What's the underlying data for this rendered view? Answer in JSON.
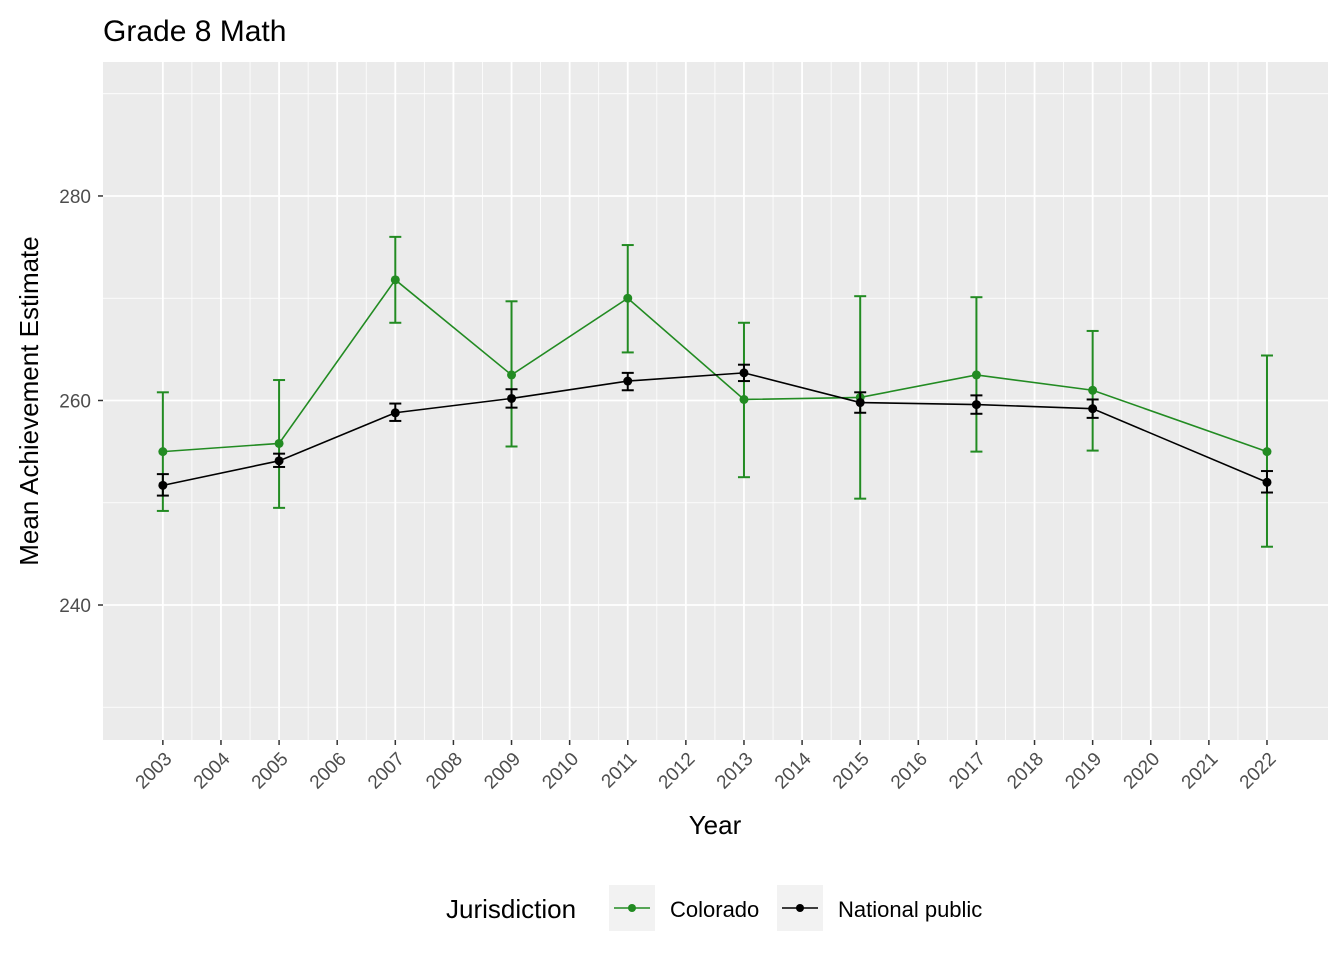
{
  "chart_data": {
    "type": "line",
    "title": "Grade 8 Math",
    "xlabel": "Year",
    "ylabel": "Mean Achievement Estimate",
    "xlim": [
      2001.97,
      2023.05
    ],
    "ylim": [
      226.8,
      293.1
    ],
    "x_ticks": [
      2003,
      2004,
      2005,
      2006,
      2007,
      2008,
      2009,
      2010,
      2011,
      2012,
      2013,
      2014,
      2015,
      2016,
      2017,
      2018,
      2019,
      2020,
      2021,
      2022
    ],
    "y_ticks": [
      240,
      260,
      280
    ],
    "grid": true,
    "legend_title": "Jurisdiction",
    "legend_position": "bottom",
    "x": [
      2003,
      2005,
      2007,
      2009,
      2011,
      2013,
      2015,
      2017,
      2019,
      2022
    ],
    "series": [
      {
        "name": "Colorado",
        "color": "#228B22",
        "values": [
          255.0,
          255.8,
          271.8,
          262.5,
          270.0,
          260.1,
          260.3,
          262.5,
          261.0,
          255.0
        ],
        "lower": [
          249.2,
          249.5,
          267.6,
          255.5,
          264.7,
          252.5,
          250.4,
          255.0,
          255.1,
          245.7
        ],
        "upper": [
          260.8,
          262.0,
          276.0,
          269.7,
          275.2,
          267.6,
          270.2,
          270.1,
          266.8,
          264.4
        ]
      },
      {
        "name": "National public",
        "color": "#000000",
        "values": [
          251.7,
          254.1,
          258.8,
          260.2,
          261.9,
          262.7,
          259.8,
          259.6,
          259.2,
          252.0
        ],
        "lower": [
          250.7,
          253.5,
          258.0,
          259.3,
          261.0,
          261.9,
          258.8,
          258.7,
          258.3,
          251.0
        ],
        "upper": [
          252.8,
          254.8,
          259.7,
          261.1,
          262.7,
          263.5,
          260.8,
          260.5,
          260.1,
          253.1
        ]
      }
    ]
  }
}
